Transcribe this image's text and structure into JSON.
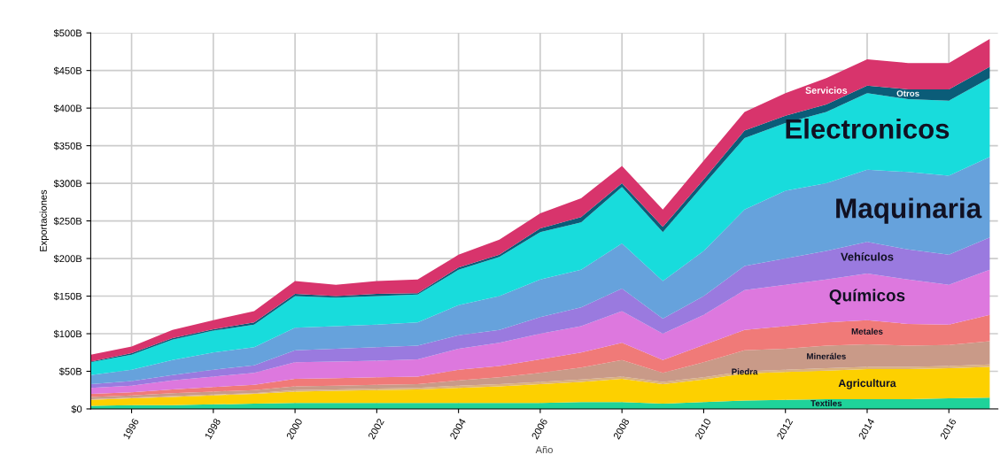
{
  "chart_data": {
    "type": "area",
    "stacked": true,
    "xlabel": "Año",
    "ylabel": "Exportaciones",
    "x": [
      1995,
      1996,
      1997,
      1998,
      1999,
      2000,
      2001,
      2002,
      2003,
      2004,
      2005,
      2006,
      2007,
      2008,
      2009,
      2010,
      2011,
      2012,
      2013,
      2014,
      2015,
      2016,
      2017
    ],
    "xlim": [
      1995,
      2017.2
    ],
    "xticks": [
      1996,
      1998,
      2000,
      2002,
      2004,
      2006,
      2008,
      2010,
      2012,
      2014,
      2016
    ],
    "ylim": [
      0,
      500
    ],
    "yticks": [
      {
        "value": 0,
        "label": "$0"
      },
      {
        "value": 50,
        "label": "$50B"
      },
      {
        "value": 100,
        "label": "$100B"
      },
      {
        "value": 150,
        "label": "$150B"
      },
      {
        "value": 200,
        "label": "$200B"
      },
      {
        "value": 250,
        "label": "$250B"
      },
      {
        "value": 300,
        "label": "$300B"
      },
      {
        "value": 350,
        "label": "$350B"
      },
      {
        "value": 400,
        "label": "$400B"
      },
      {
        "value": 450,
        "label": "$450B"
      },
      {
        "value": 500,
        "label": "$500B"
      }
    ],
    "grid": true,
    "series": [
      {
        "name": "Textiles",
        "color": "#1fd39a",
        "values": [
          4,
          5,
          5,
          6,
          7,
          8,
          8,
          8,
          8,
          8,
          8,
          8,
          9,
          9,
          7,
          9,
          11,
          12,
          13,
          13,
          13,
          14,
          15
        ]
      },
      {
        "name": "Agricultura",
        "color": "#fdd000",
        "values": [
          8,
          9,
          11,
          12,
          13,
          15,
          16,
          17,
          18,
          20,
          22,
          25,
          27,
          31,
          26,
          30,
          36,
          37,
          38,
          40,
          40,
          40,
          41
        ]
      },
      {
        "name": "Piedra",
        "color": "#dcb27c",
        "values": [
          1,
          1,
          1,
          1,
          1,
          2,
          2,
          2,
          2,
          3,
          3,
          3,
          3,
          3,
          3,
          3,
          3,
          3,
          3,
          3,
          3,
          3,
          3
        ]
      },
      {
        "name": "Mineráles",
        "color": "#c99a88",
        "values": [
          3,
          3,
          4,
          4,
          4,
          5,
          5,
          5,
          5,
          7,
          9,
          12,
          16,
          22,
          12,
          20,
          28,
          28,
          30,
          30,
          28,
          28,
          31
        ]
      },
      {
        "name": "Metales",
        "color": "#f07a78",
        "values": [
          4,
          4,
          5,
          6,
          7,
          10,
          10,
          10,
          10,
          14,
          15,
          18,
          20,
          23,
          17,
          23,
          27,
          30,
          31,
          32,
          29,
          27,
          35
        ]
      },
      {
        "name": "Químicos",
        "color": "#dd78de",
        "values": [
          8,
          9,
          12,
          14,
          16,
          22,
          22,
          22,
          23,
          28,
          31,
          34,
          35,
          42,
          35,
          40,
          53,
          55,
          57,
          62,
          59,
          53,
          60
        ]
      },
      {
        "name": "Vehículos",
        "color": "#9a7adf",
        "values": [
          5,
          6,
          7,
          9,
          10,
          16,
          17,
          18,
          18,
          18,
          17,
          22,
          25,
          30,
          20,
          25,
          32,
          35,
          38,
          42,
          40,
          40,
          43
        ]
      },
      {
        "name": "Maquinaria",
        "color": "#66a2dc",
        "values": [
          12,
          15,
          20,
          23,
          24,
          30,
          30,
          30,
          31,
          40,
          45,
          50,
          50,
          60,
          50,
          60,
          75,
          90,
          90,
          96,
          103,
          105,
          107
        ]
      },
      {
        "name": "Electronicos",
        "color": "#18dcdc",
        "values": [
          17,
          20,
          27,
          29,
          30,
          42,
          38,
          38,
          37,
          47,
          52,
          63,
          63,
          75,
          65,
          88,
          95,
          90,
          95,
          102,
          97,
          100,
          105
        ]
      },
      {
        "name": "Otros",
        "color": "#0b5c78",
        "values": [
          1,
          2,
          2,
          2,
          3,
          3,
          2,
          3,
          2,
          3,
          3,
          5,
          7,
          5,
          7,
          7,
          10,
          10,
          10,
          10,
          13,
          15,
          15
        ]
      },
      {
        "name": "Servicios",
        "color": "#d8346c",
        "values": [
          9,
          9,
          11,
          12,
          15,
          17,
          15,
          17,
          18,
          17,
          20,
          20,
          25,
          23,
          23,
          25,
          25,
          30,
          35,
          35,
          35,
          35,
          37
        ]
      }
    ]
  }
}
